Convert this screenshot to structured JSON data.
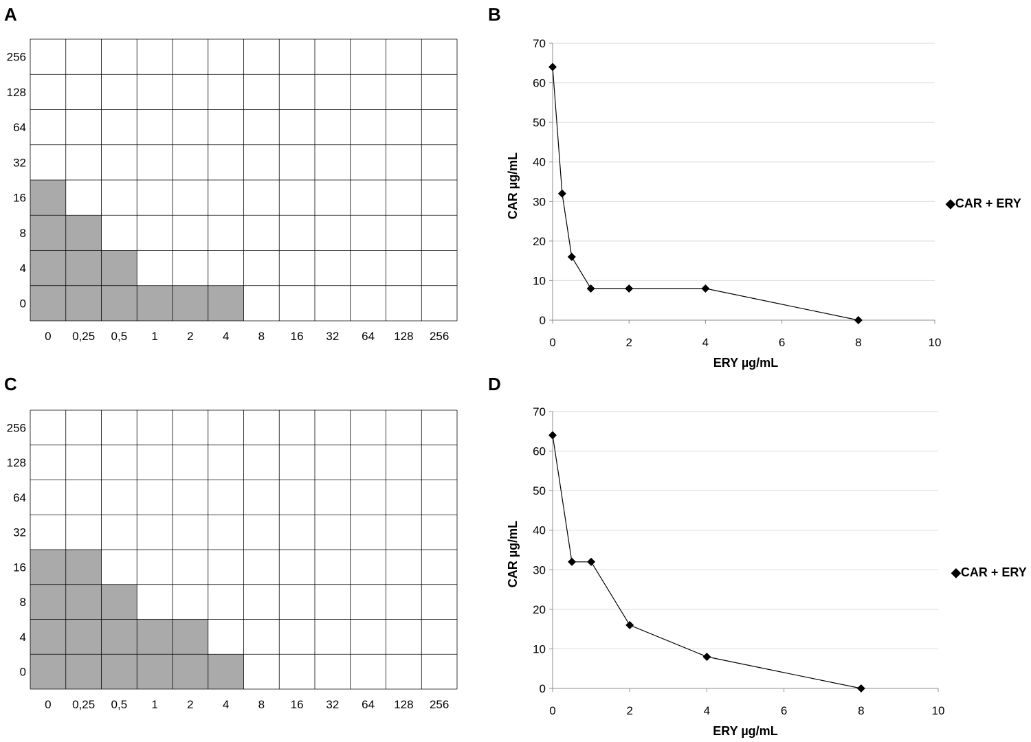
{
  "chart_data": [
    {
      "panel": "A",
      "type": "heatmap",
      "categories": [
        "0",
        "0,25",
        "0,5",
        "1",
        "2",
        "4",
        "8",
        "16",
        "32",
        "64",
        "128",
        "256"
      ],
      "rows": [
        "256",
        "128",
        "64",
        "32",
        "16",
        "8",
        "4",
        "0"
      ],
      "grown_rows_per_column": [
        4,
        3,
        2,
        1,
        1,
        1,
        0,
        0,
        0,
        0,
        0,
        0
      ],
      "colors": {
        "grown": "#aaaaaa",
        "clear": "#ffffff",
        "grid": "#000000"
      }
    },
    {
      "panel": "B",
      "type": "line",
      "x": [
        0,
        0.25,
        0.5,
        1,
        2,
        4,
        8
      ],
      "y": [
        64,
        32,
        16,
        8,
        8,
        8,
        0
      ],
      "xlabel": "ERY µg/mL",
      "ylabel": "CAR  µg/mL",
      "xlim": [
        0,
        10
      ],
      "ylim": [
        0,
        70
      ],
      "xticks": [
        0,
        2,
        4,
        6,
        8,
        10
      ],
      "yticks": [
        0,
        10,
        20,
        30,
        40,
        50,
        60,
        70
      ],
      "grid": "horizontal",
      "legend": "◆CAR +  ERY",
      "legend_position": "right"
    },
    {
      "panel": "C",
      "type": "heatmap",
      "categories": [
        "0",
        "0,25",
        "0,5",
        "1",
        "2",
        "4",
        "8",
        "16",
        "32",
        "64",
        "128",
        "256"
      ],
      "rows": [
        "256",
        "128",
        "64",
        "32",
        "16",
        "8",
        "4",
        "0"
      ],
      "grown_rows_per_column": [
        4,
        4,
        3,
        2,
        2,
        1,
        0,
        0,
        0,
        0,
        0,
        0
      ],
      "colors": {
        "grown": "#aaaaaa",
        "clear": "#ffffff",
        "grid": "#000000"
      }
    },
    {
      "panel": "D",
      "type": "line",
      "x": [
        0,
        0.5,
        1,
        2,
        4,
        8
      ],
      "y": [
        64,
        32,
        32,
        16,
        8,
        0
      ],
      "xlabel": "ERY µg/mL",
      "ylabel": "CAR  µg/mL",
      "xlim": [
        0,
        10
      ],
      "ylim": [
        0,
        70
      ],
      "xticks": [
        0,
        2,
        4,
        6,
        8,
        10
      ],
      "yticks": [
        0,
        10,
        20,
        30,
        40,
        50,
        60,
        70
      ],
      "grid": "horizontal",
      "legend": "◆CAR + ERY",
      "legend_position": "right"
    }
  ]
}
